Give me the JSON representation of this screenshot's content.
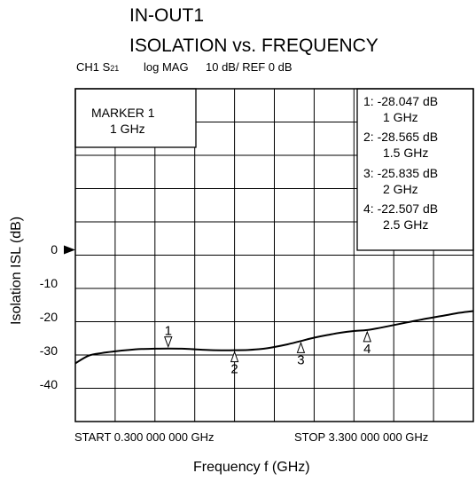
{
  "chart_data": {
    "type": "line",
    "title_line1": "IN-OUT1",
    "title_line2": "ISOLATION vs. FREQUENCY",
    "header": {
      "channel": "CH1 S",
      "channel_sub": "21",
      "format": "log MAG",
      "scale": "10 dB/ REF 0 dB"
    },
    "ylabel": "Isolation  ISL (dB)",
    "xlabel": "Frequency  f (GHz)",
    "y_ticks": [
      {
        "label": "0",
        "value": 0
      },
      {
        "label": "-10",
        "value": -10
      },
      {
        "label": "-20",
        "value": -20
      },
      {
        "label": "-30",
        "value": -30
      },
      {
        "label": "-40",
        "value": -40
      }
    ],
    "ylim": [
      -50,
      50
    ],
    "xlim": [
      0.3,
      3.3
    ],
    "ref_marker": "0",
    "start_label": "START  0.300  000  000  GHz",
    "stop_label": "STOP  3.300  000  000  GHz",
    "marker_box": {
      "line1": "MARKER 1",
      "line2": "1 GHz"
    },
    "marker_list": [
      {
        "value": "1:  -28.047 dB",
        "freq": "1 GHz"
      },
      {
        "value": "2:  -28.565 dB",
        "freq": "1.5 GHz"
      },
      {
        "value": "3:  -25.835 dB",
        "freq": "2 GHz"
      },
      {
        "value": "4:  -22.507 dB",
        "freq": "2.5 GHz"
      }
    ],
    "markers": [
      {
        "label": "1",
        "x": 1.0,
        "y": -28.047,
        "side": "above"
      },
      {
        "label": "2",
        "x": 1.5,
        "y": -28.565,
        "side": "below"
      },
      {
        "label": "3",
        "x": 2.0,
        "y": -25.835,
        "side": "below"
      },
      {
        "label": "4",
        "x": 2.5,
        "y": -22.507,
        "side": "below"
      }
    ],
    "series": [
      {
        "x": [
          0.3,
          0.4,
          0.5,
          0.6,
          0.7,
          0.8,
          0.9,
          1.0,
          1.1,
          1.2,
          1.3,
          1.4,
          1.5,
          1.6,
          1.7,
          1.8,
          1.9,
          2.0,
          2.1,
          2.2,
          2.3,
          2.4,
          2.5,
          2.6,
          2.7,
          2.8,
          2.9,
          3.0,
          3.1,
          3.2,
          3.3
        ],
        "values": [
          -32.5,
          -30.2,
          -29.4,
          -28.9,
          -28.5,
          -28.2,
          -28.1,
          -28.05,
          -28.1,
          -28.3,
          -28.5,
          -28.6,
          -28.57,
          -28.5,
          -28.2,
          -27.6,
          -26.8,
          -25.8,
          -24.8,
          -24.0,
          -23.3,
          -22.8,
          -22.5,
          -21.8,
          -21.0,
          -20.2,
          -19.4,
          -18.7,
          -18.0,
          -17.3,
          -16.8
        ],
        "color": "#000000"
      }
    ],
    "grid": true
  }
}
